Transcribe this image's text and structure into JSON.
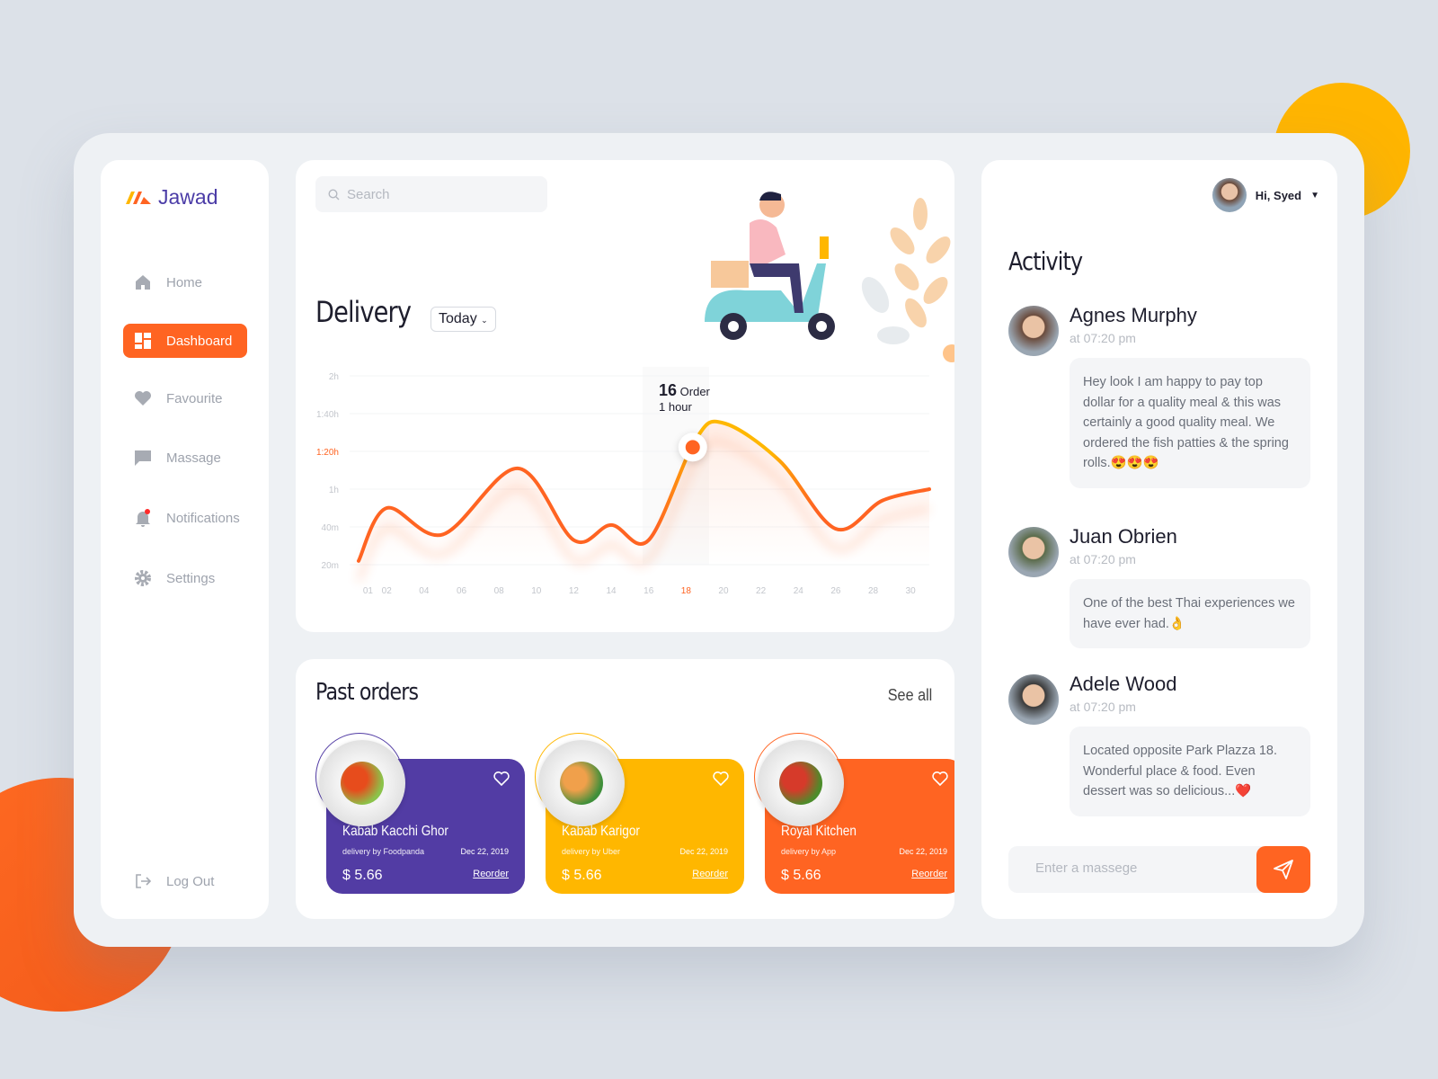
{
  "brand": {
    "name": "Jawad"
  },
  "sidebar": {
    "items": [
      {
        "label": "Home",
        "icon": "home-icon"
      },
      {
        "label": "Dashboard",
        "icon": "dashboard-icon",
        "active": true
      },
      {
        "label": "Favourite",
        "icon": "heart-icon"
      },
      {
        "label": "Massage",
        "icon": "message-icon"
      },
      {
        "label": "Notifications",
        "icon": "bell-icon"
      },
      {
        "label": "Settings",
        "icon": "gear-icon"
      }
    ],
    "logout": "Log Out"
  },
  "search": {
    "placeholder": "Search"
  },
  "delivery": {
    "title": "Delivery",
    "period": "Today"
  },
  "tooltip": {
    "count": "16",
    "unit": "Order",
    "duration": "1 hour"
  },
  "chart_data": {
    "type": "line",
    "yticks": [
      "20m",
      "40m",
      "1h",
      "1:20h",
      "1:40h",
      "2h"
    ],
    "highlight_ytick": "1:20h",
    "xticks": [
      "01",
      "02",
      "04",
      "06",
      "08",
      "10",
      "12",
      "14",
      "16",
      "18",
      "20",
      "22",
      "24",
      "26",
      "28",
      "30"
    ],
    "highlight_xtick": "18",
    "ylim_minutes": [
      20,
      120
    ],
    "x": [
      0.5,
      2,
      5,
      9,
      12,
      14,
      16,
      18.5,
      20,
      23,
      26,
      28.5,
      31
    ],
    "y_minutes": [
      22,
      50,
      36,
      71,
      33,
      41,
      33,
      86,
      95,
      75,
      39,
      54,
      60
    ],
    "grid": true
  },
  "orders": {
    "title": "Past orders",
    "see_all": "See all",
    "items": [
      {
        "name": "Kabab Kacchi Ghor",
        "delivery": "delivery by Foodpanda",
        "date": "Dec 22, 2019",
        "price": "$ 5.66",
        "action": "Reorder",
        "color": "#523ca4"
      },
      {
        "name": "Kabab Karigor",
        "delivery": "delivery by Uber",
        "date": "Dec 22, 2019",
        "price": "$ 5.66",
        "action": "Reorder",
        "color": "#ffb700"
      },
      {
        "name": "Royal Kitchen",
        "delivery": "delivery by App",
        "date": "Dec 22, 2019",
        "price": "$ 5.66",
        "action": "Reorder",
        "color": "#ff6422"
      }
    ]
  },
  "user": {
    "greeting": "Hi, Syed"
  },
  "activity": {
    "title": "Activity",
    "items": [
      {
        "name": "Agnes Murphy",
        "time": "at 07:20 pm",
        "text": "Hey look I am happy to pay top dollar for a quality meal & this was certainly a good quality meal. We ordered the fish patties & the spring rolls.😍😍😍"
      },
      {
        "name": "Juan Obrien",
        "time": "at 07:20 pm",
        "text": "One of the best Thai experiences we have ever had.👌"
      },
      {
        "name": "Adele Wood",
        "time": "at 07:20 pm",
        "text": "Located opposite Park Plazza 18. Wonderful place & food. Even dessert was so delicious...❤️"
      }
    ],
    "input_placeholder": "Enter a massege"
  },
  "colors": {
    "accent": "#ff6422",
    "yellow": "#ffb700",
    "purple": "#523ca4"
  }
}
